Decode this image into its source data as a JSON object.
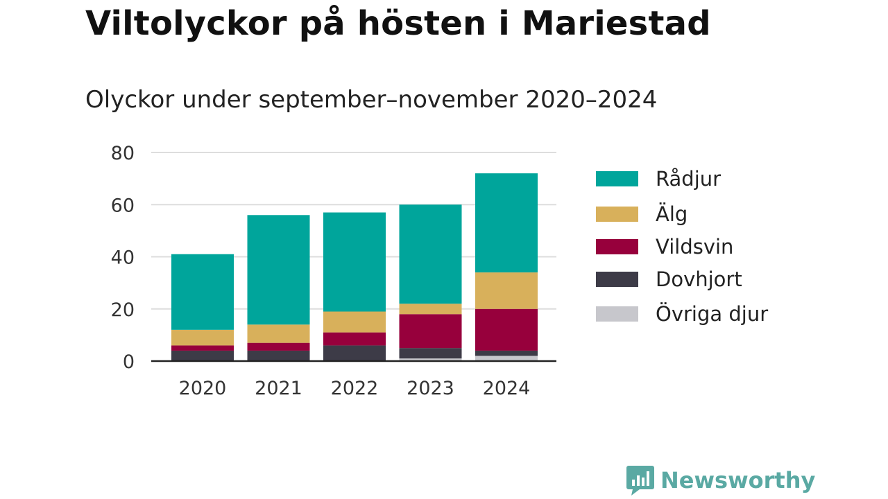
{
  "colors": {
    "radjur": "#00a59b",
    "alg": "#d8b05b",
    "vildsvin": "#97003c",
    "dovhjort": "#3d3b47",
    "ovriga": "#c7c7cc",
    "brand": "#5aa9a3"
  },
  "brand": {
    "name": "Newsworthy",
    "icon": "bar-chart-speech-bubble-icon"
  },
  "chart_data": {
    "type": "bar",
    "stacked": true,
    "title": "Viltolyckor på hösten i Mariestad",
    "subtitle": "Olyckor under september–november 2020–2024",
    "categories": [
      "2020",
      "2021",
      "2022",
      "2023",
      "2024"
    ],
    "ylim": [
      0,
      80
    ],
    "yticks": [
      0,
      20,
      40,
      60,
      80
    ],
    "grid": true,
    "legend_position": "right",
    "series": [
      {
        "name": "Övriga djur",
        "color_key": "ovriga",
        "values": [
          0,
          0,
          0,
          1,
          2
        ]
      },
      {
        "name": "Dovhjort",
        "color_key": "dovhjort",
        "values": [
          4,
          4,
          6,
          4,
          2
        ]
      },
      {
        "name": "Vildsvin",
        "color_key": "vildsvin",
        "values": [
          2,
          3,
          5,
          13,
          16
        ]
      },
      {
        "name": "Älg",
        "color_key": "alg",
        "values": [
          6,
          7,
          8,
          4,
          14
        ]
      },
      {
        "name": "Rådjur",
        "color_key": "radjur",
        "values": [
          29,
          42,
          38,
          38,
          38
        ]
      }
    ],
    "legend_order": [
      "Rådjur",
      "Älg",
      "Vildsvin",
      "Dovhjort",
      "Övriga djur"
    ]
  }
}
